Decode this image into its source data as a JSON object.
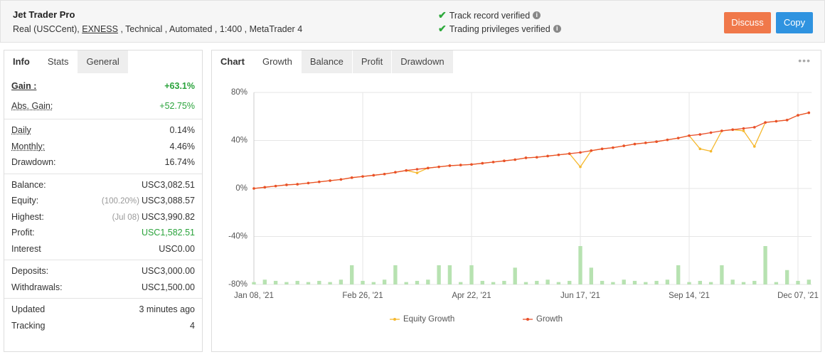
{
  "header": {
    "title": "Jet Trader Pro",
    "details_prefix": "Real (USCCent), ",
    "broker": "EXNESS",
    "details_suffix": " , Technical , Automated , 1:400 , MetaTrader 4",
    "verifications": [
      "Track record verified",
      "Trading privileges verified"
    ],
    "buttons": [
      "Discuss",
      "Copy"
    ]
  },
  "stats_panel": {
    "tabs": [
      "Info",
      "Stats",
      "General"
    ],
    "groups": [
      [
        {
          "label": "Gain :",
          "value": "+63.1%"
        },
        {
          "label": "Abs. Gain:",
          "value": "+52.75%"
        }
      ],
      [
        {
          "label": "Daily",
          "value": "0.14%"
        },
        {
          "label": "Monthly:",
          "value": "4.46%"
        },
        {
          "label": "Drawdown:",
          "value": "16.74%"
        }
      ],
      [
        {
          "label": "Balance:",
          "value": "USC3,082.51"
        },
        {
          "label": "Equity:",
          "note": "(100.20%)",
          "value": "USC3,088.57"
        },
        {
          "label": "Highest:",
          "note": "(Jul 08)",
          "value": "USC3,990.82"
        },
        {
          "label": "Profit:",
          "value": "USC1,582.51"
        },
        {
          "label": "Interest",
          "value": "USC0.00"
        }
      ],
      [
        {
          "label": "Deposits:",
          "value": "USC3,000.00"
        },
        {
          "label": "Withdrawals:",
          "value": "USC1,500.00"
        }
      ],
      [
        {
          "label": "Updated",
          "value": "3 minutes ago"
        },
        {
          "label": "Tracking",
          "value": "4"
        }
      ]
    ]
  },
  "chart_tabs": [
    "Chart",
    "Growth",
    "Balance",
    "Profit",
    "Drawdown"
  ],
  "chart_data": {
    "type": "line",
    "categories": [
      "Jan 08, '21",
      null,
      null,
      null,
      null,
      null,
      null,
      null,
      null,
      null,
      "Feb 26, '21",
      null,
      null,
      null,
      null,
      null,
      null,
      null,
      null,
      null,
      "Apr 22, '21",
      null,
      null,
      null,
      null,
      null,
      null,
      null,
      null,
      null,
      "Jun 17, '21",
      null,
      null,
      null,
      null,
      null,
      null,
      null,
      null,
      null,
      "Sep 14, '21",
      null,
      null,
      null,
      null,
      null,
      null,
      null,
      null,
      null,
      "Dec 07, '21",
      null
    ],
    "series": [
      {
        "name": "Equity Growth",
        "color": "#f5b82e",
        "values": [
          0,
          1,
          2,
          3,
          3.5,
          4.5,
          5.5,
          6.5,
          7.5,
          9,
          10,
          11,
          12,
          13.5,
          15,
          13,
          17,
          18,
          19,
          19.5,
          20,
          21,
          22,
          23,
          24,
          25.5,
          26,
          27,
          28,
          29,
          18,
          31.5,
          33,
          34,
          35.5,
          37,
          38,
          39,
          40.5,
          42,
          44,
          33,
          31,
          48,
          49,
          48,
          35,
          55,
          56,
          57,
          61,
          63.1
        ]
      },
      {
        "name": "Growth",
        "color": "#e9502b",
        "values": [
          0,
          1,
          2,
          3,
          3.5,
          4.5,
          5.5,
          6.5,
          7.5,
          9,
          10,
          11,
          12,
          13.5,
          15,
          16,
          17,
          18,
          19,
          19.5,
          20,
          21,
          22,
          23,
          24,
          25.5,
          26,
          27,
          28,
          29,
          30,
          31.5,
          33,
          34,
          35.5,
          37,
          38,
          39,
          40.5,
          42,
          44,
          45,
          46.5,
          48,
          49,
          50,
          51,
          55,
          56,
          57,
          61,
          63.1
        ]
      }
    ],
    "bars": {
      "color": "#b7e2b1",
      "values": [
        -78,
        -76,
        -77,
        -78,
        -77,
        -78,
        -77,
        -78,
        -76,
        -64,
        -77,
        -78,
        -76,
        -64,
        -78,
        -77,
        -76,
        -64,
        -64,
        -78,
        -64,
        -77,
        -78,
        -77,
        -66,
        -78,
        -77,
        -76,
        -78,
        -77,
        -48,
        -66,
        -77,
        -78,
        -76,
        -77,
        -78,
        -77,
        -76,
        -64,
        -78,
        -77,
        -78,
        -64,
        -76,
        -78,
        -77,
        -48,
        -78,
        -68,
        -77,
        -76
      ]
    },
    "ylim": [
      -80,
      80
    ],
    "yticks": [
      {
        "value": -80,
        "label": "-80%"
      },
      {
        "value": -40,
        "label": "-40%"
      },
      {
        "value": 0,
        "label": "0%"
      },
      {
        "value": 40,
        "label": "40%"
      },
      {
        "value": 80,
        "label": "80%"
      }
    ],
    "grid": true
  }
}
